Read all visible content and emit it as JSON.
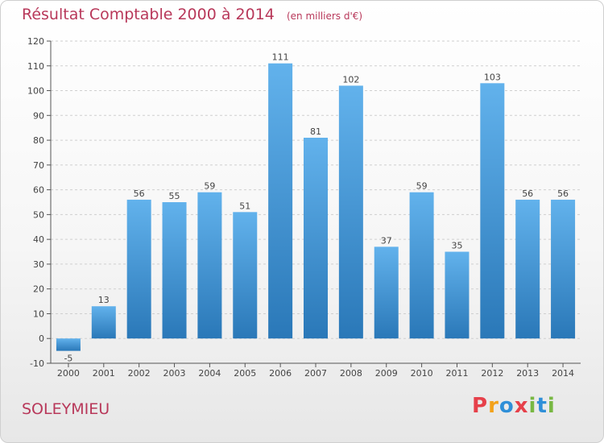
{
  "title": "Résultat Comptable 2000 à 2014",
  "subtitle": "(en milliers d'€)",
  "location": "SOLEYMIEU",
  "logo": {
    "letters": [
      "P",
      "r",
      "o",
      "x",
      "i",
      "t",
      "i"
    ],
    "colors": [
      "#e6404a",
      "#f3a21a",
      "#2f8fd8",
      "#e6404a",
      "#78b843",
      "#2f8fd8",
      "#78b843"
    ]
  },
  "chart_data": {
    "type": "bar",
    "categories": [
      "2000",
      "2001",
      "2002",
      "2003",
      "2004",
      "2005",
      "2006",
      "2007",
      "2008",
      "2009",
      "2010",
      "2011",
      "2012",
      "2013",
      "2014"
    ],
    "values": [
      -5,
      13,
      56,
      55,
      59,
      51,
      111,
      81,
      102,
      37,
      59,
      35,
      103,
      56,
      56
    ],
    "ylim": [
      -10,
      120
    ],
    "yticks": [
      -10,
      0,
      10,
      20,
      30,
      40,
      50,
      60,
      70,
      80,
      90,
      100,
      110,
      120
    ],
    "grid": "horizontal dashed",
    "bar_color_top": "#62b2ec",
    "bar_color_bottom": "#2a78b8"
  }
}
